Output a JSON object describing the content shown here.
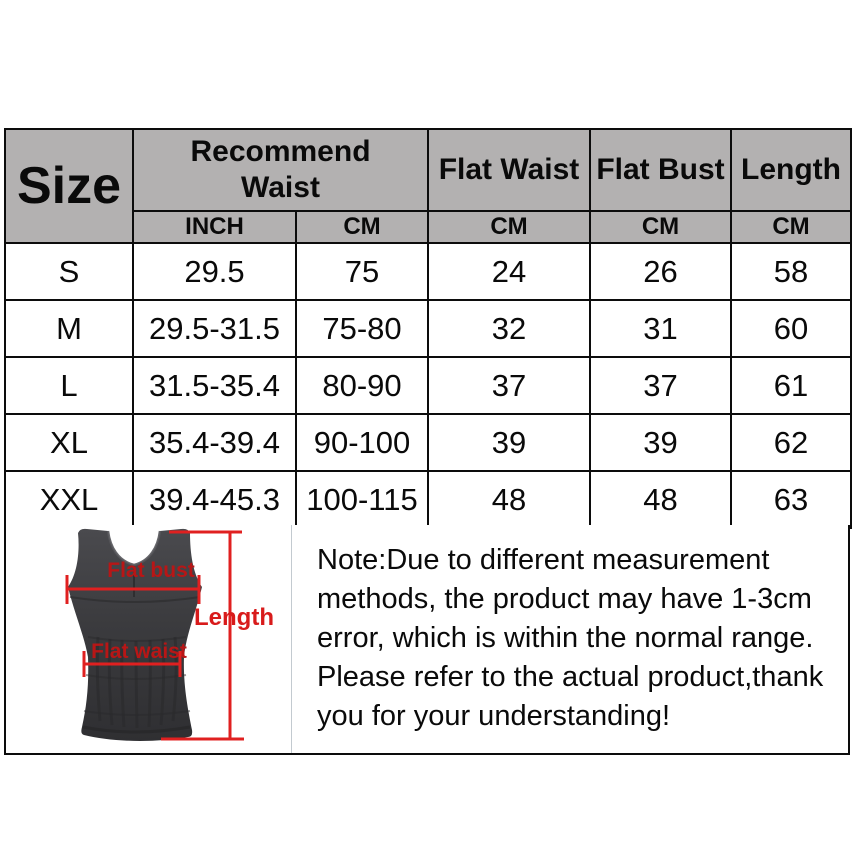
{
  "table": {
    "header": {
      "size": "Size",
      "recommend_waist": "Recommend Waist",
      "flat_waist": "Flat Waist",
      "flat_bust": "Flat Bust",
      "length": "Length"
    },
    "subheader": [
      "INCH",
      "CM",
      "CM",
      "CM",
      "CM"
    ],
    "rows": [
      {
        "size": "S",
        "recommend_waist_inch": "29.5",
        "recommend_waist_cm": "75",
        "flat_waist_cm": "24",
        "flat_bust_cm": "26",
        "length_cm": "58"
      },
      {
        "size": "M",
        "recommend_waist_inch": "29.5-31.5",
        "recommend_waist_cm": "75-80",
        "flat_waist_cm": "32",
        "flat_bust_cm": "31",
        "length_cm": "60"
      },
      {
        "size": "L",
        "recommend_waist_inch": "31.5-35.4",
        "recommend_waist_cm": "80-90",
        "flat_waist_cm": "37",
        "flat_bust_cm": "37",
        "length_cm": "61"
      },
      {
        "size": "XL",
        "recommend_waist_inch": "35.4-39.4",
        "recommend_waist_cm": "90-100",
        "flat_waist_cm": "39",
        "flat_bust_cm": "39",
        "length_cm": "62"
      },
      {
        "size": "XXL",
        "recommend_waist_inch": "39.4-45.3",
        "recommend_waist_cm": "100-115",
        "flat_waist_cm": "48",
        "flat_bust_cm": "48",
        "length_cm": "63"
      }
    ]
  },
  "diagram": {
    "labels": {
      "flat_bust": "Flat bust",
      "flat_waist": "Flat waist",
      "length": "Length"
    },
    "annotation_color": "#e02020",
    "vest_color": "#3b3b3e"
  },
  "note": {
    "lines": [
      "Note:Due to different measurement",
      "methods, the product may have 1-3cm",
      "error, which is within the normal range.",
      "Please refer to the actual product,thank",
      "you for your understanding!"
    ]
  },
  "colors": {
    "header_bg": "#b3b1b1",
    "border": "#0c0c0c"
  }
}
